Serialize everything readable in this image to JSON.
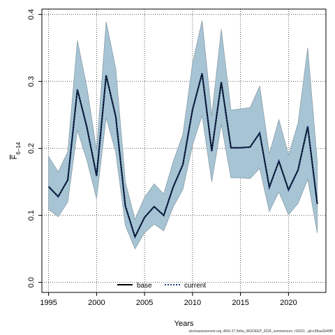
{
  "chart_data": {
    "type": "line",
    "xlabel": "Years",
    "ylabel": "F̄ 6-14",
    "ylabel_main": "F",
    "ylabel_sub": "6−14",
    "xlim": [
      1994.3,
      2023.9
    ],
    "ylim": [
      -0.015,
      0.408
    ],
    "xticks": [
      1995,
      2000,
      2005,
      2010,
      2015,
      2020
    ],
    "yticks": [
      0.0,
      0.1,
      0.2,
      0.3,
      0.4
    ],
    "ytick_labels": [
      "0.0",
      "0.1",
      "0.2",
      "0.3",
      "0.4"
    ],
    "grid": true,
    "legend_placement": "bottom-center",
    "x": [
      1995,
      1996,
      1997,
      1998,
      1999,
      2000,
      2001,
      2002,
      2003,
      2004,
      2005,
      2006,
      2007,
      2008,
      2009,
      2010,
      2011,
      2012,
      2013,
      2014,
      2015,
      2016,
      2017,
      2018,
      2019,
      2020,
      2021,
      2022,
      2023
    ],
    "band": {
      "upper": [
        0.188,
        0.165,
        0.195,
        0.361,
        0.291,
        0.197,
        0.389,
        0.319,
        0.15,
        0.094,
        0.127,
        0.147,
        0.132,
        0.181,
        0.221,
        0.327,
        0.391,
        0.249,
        0.378,
        0.257,
        0.259,
        0.261,
        0.293,
        0.192,
        0.243,
        0.19,
        0.238,
        0.35,
        0.18
      ],
      "lower": [
        0.109,
        0.098,
        0.12,
        0.227,
        0.182,
        0.125,
        0.246,
        0.194,
        0.085,
        0.05,
        0.074,
        0.087,
        0.077,
        0.113,
        0.139,
        0.205,
        0.249,
        0.15,
        0.236,
        0.156,
        0.156,
        0.155,
        0.17,
        0.106,
        0.135,
        0.101,
        0.118,
        0.154,
        0.074
      ],
      "fill": "#a6c4d4",
      "stroke": "#8a9ea8"
    },
    "series": [
      {
        "name": "base",
        "values": [
          0.143,
          0.128,
          0.153,
          0.288,
          0.231,
          0.159,
          0.309,
          0.247,
          0.114,
          0.068,
          0.097,
          0.113,
          0.1,
          0.143,
          0.176,
          0.258,
          0.312,
          0.196,
          0.299,
          0.201,
          0.201,
          0.202,
          0.223,
          0.142,
          0.181,
          0.138,
          0.168,
          0.233,
          0.117
        ],
        "color": "#000000",
        "style": "solid"
      },
      {
        "name": "current",
        "values": [
          0.143,
          0.128,
          0.153,
          0.288,
          0.231,
          0.159,
          0.309,
          0.247,
          0.114,
          0.068,
          0.097,
          0.113,
          0.1,
          0.143,
          0.176,
          0.258,
          0.312,
          0.196,
          0.299,
          0.201,
          0.201,
          0.202,
          0.223,
          0.142,
          0.181,
          0.138,
          0.168,
          0.233,
          0.117
        ],
        "color": "#1a3a7a",
        "style": "dotted"
      }
    ]
  },
  "footer": "stockassessment.org, ARU.27.5b6a_WGDEEP_2024_summersurv, r18101 , git:e38aa2b49f0"
}
